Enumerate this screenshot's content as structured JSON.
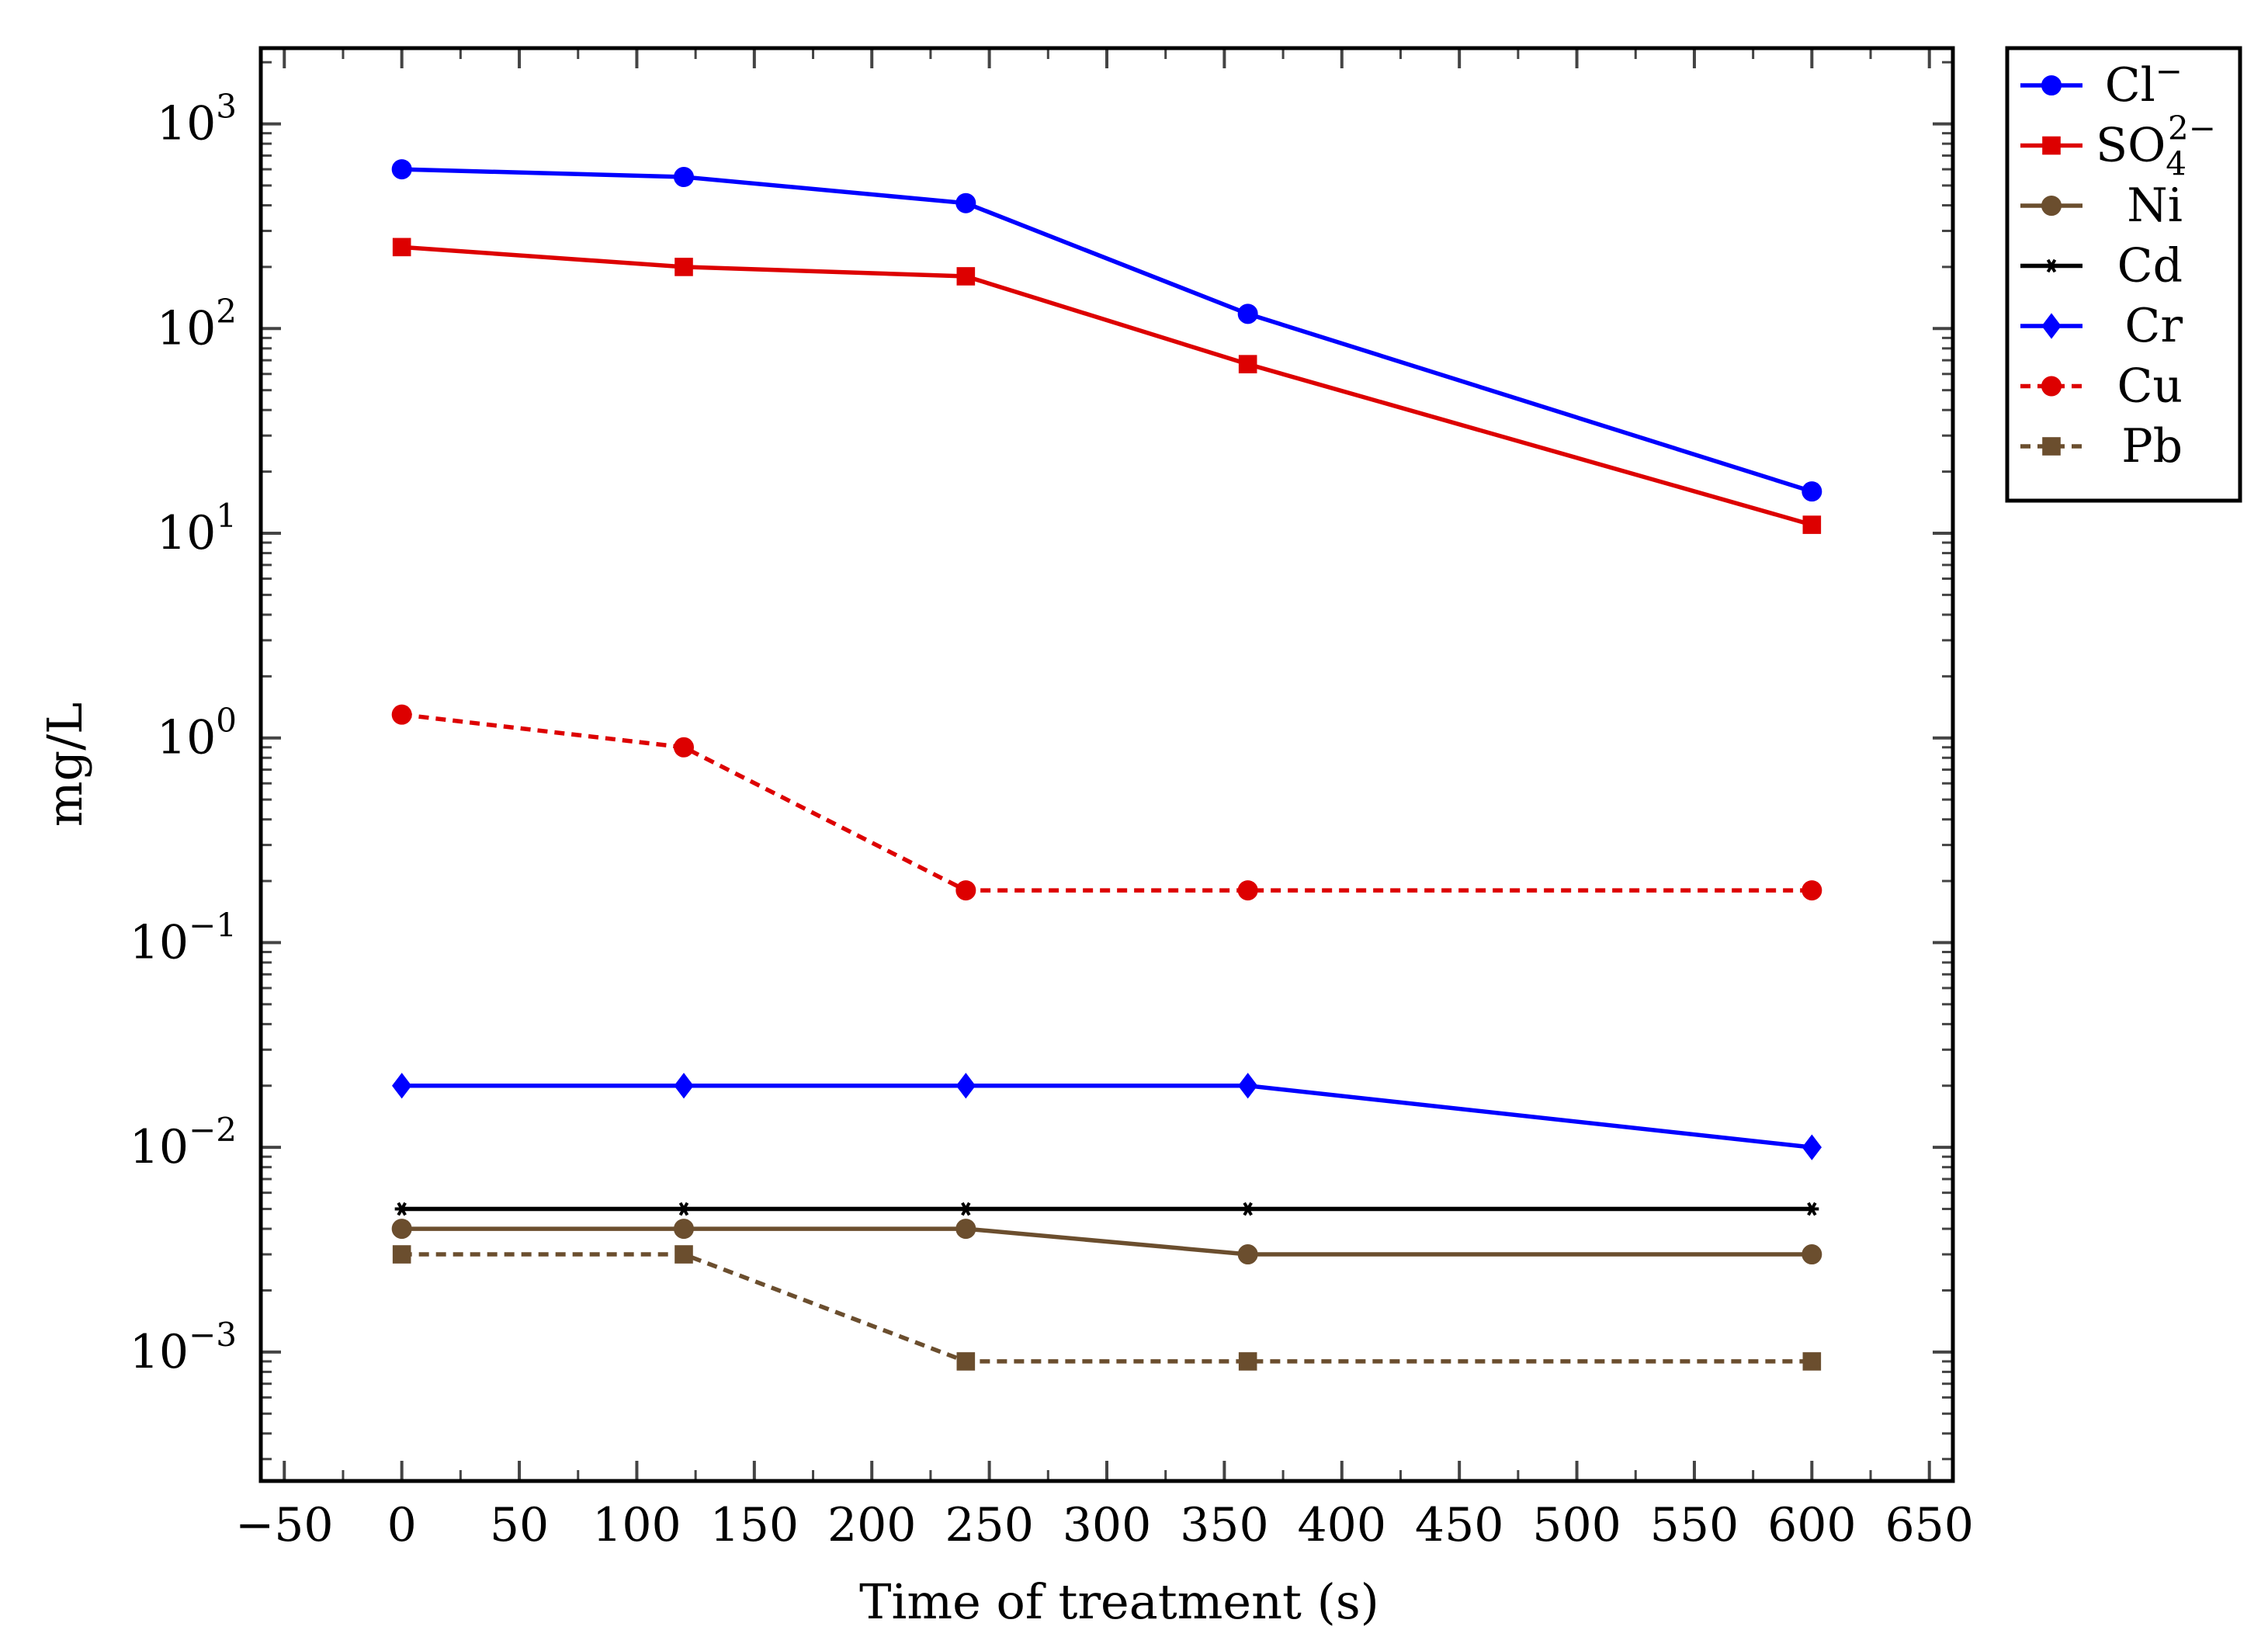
{
  "chart_data": {
    "type": "line",
    "title": "",
    "xlabel": "Time of treatment  (s)",
    "ylabel": "mg/L",
    "xlim": [
      -60,
      660
    ],
    "ylim_log10": [
      -3.63,
      3.37
    ],
    "yscale": "log",
    "grid": false,
    "legend_position": "outside-top-right",
    "x_ticks": [
      -50,
      0,
      50,
      100,
      150,
      200,
      250,
      300,
      350,
      400,
      450,
      500,
      550,
      600,
      650
    ],
    "x_tick_labels": [
      "−50",
      "0",
      "50",
      "100",
      "150",
      "200",
      "250",
      "300",
      "350",
      "400",
      "450",
      "500",
      "550",
      "600",
      "650"
    ],
    "y_ticks": [
      {
        "exp": 3,
        "base": "10",
        "sup": "3"
      },
      {
        "exp": 2,
        "base": "10",
        "sup": "2"
      },
      {
        "exp": 1,
        "base": "10",
        "sup": "1"
      },
      {
        "exp": 0,
        "base": "10",
        "sup": "0"
      },
      {
        "exp": -1,
        "base": "10",
        "sup": "−1"
      },
      {
        "exp": -2,
        "base": "10",
        "sup": "−2"
      },
      {
        "exp": -3,
        "base": "10",
        "sup": "−3"
      }
    ],
    "x": [
      0,
      120,
      240,
      360,
      600
    ],
    "series": [
      {
        "name": "Cl−",
        "label_base": "Cl",
        "label_sup": "−",
        "label_sub": "",
        "values": [
          600,
          550,
          410,
          118,
          16
        ],
        "color": "#0000ff",
        "marker": "circle",
        "dashed": false
      },
      {
        "name": "SO4 2−",
        "label_base": "SO",
        "label_sup": "2−",
        "label_sub": "4",
        "values": [
          250,
          200,
          180,
          67,
          11
        ],
        "color": "#dd0000",
        "marker": "square",
        "dashed": false
      },
      {
        "name": "Ni",
        "label_base": "Ni",
        "label_sup": "",
        "label_sub": "",
        "values": [
          0.004,
          0.004,
          0.004,
          0.003,
          0.003
        ],
        "color": "#6b4e2e",
        "marker": "circle",
        "dashed": false
      },
      {
        "name": "Cd",
        "label_base": "Cd",
        "label_sup": "",
        "label_sub": "",
        "values": [
          0.005,
          0.005,
          0.005,
          0.005,
          0.005
        ],
        "color": "#000000",
        "marker": "star",
        "dashed": false
      },
      {
        "name": "Cr",
        "label_base": "Cr",
        "label_sup": "",
        "label_sub": "",
        "values": [
          0.02,
          0.02,
          0.02,
          0.02,
          0.01
        ],
        "color": "#0000ff",
        "marker": "diamond",
        "dashed": false
      },
      {
        "name": "Cu",
        "label_base": "Cu",
        "label_sup": "",
        "label_sub": "",
        "values": [
          1.3,
          0.9,
          0.18,
          0.18,
          0.18
        ],
        "color": "#dd0000",
        "marker": "circle",
        "dashed": true
      },
      {
        "name": "Pb",
        "label_base": "Pb",
        "label_sup": "",
        "label_sub": "",
        "values": [
          0.003,
          0.003,
          0.0009,
          0.0009,
          0.0009
        ],
        "color": "#6b4e2e",
        "marker": "square",
        "dashed": true
      }
    ]
  }
}
